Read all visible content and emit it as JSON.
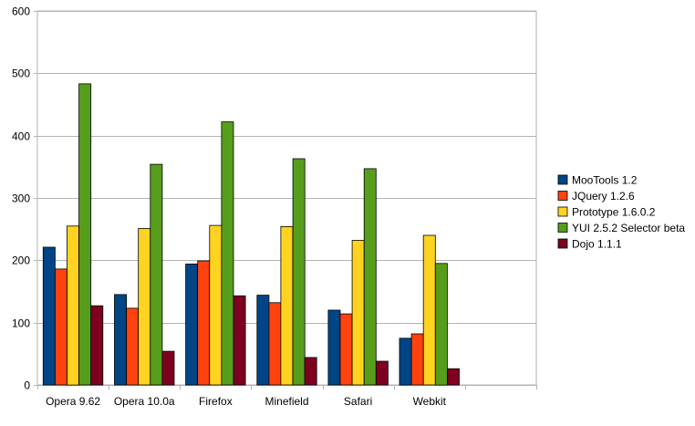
{
  "chart_data": {
    "type": "bar",
    "title": "",
    "xlabel": "",
    "ylabel": "",
    "ylim": [
      0,
      600
    ],
    "yticks": [
      0,
      100,
      200,
      300,
      400,
      500,
      600
    ],
    "grid": true,
    "legend_position": "right",
    "categories": [
      "Opera 9.62",
      "Opera 10.0a",
      "Firefox",
      "Minefield",
      "Safari",
      "Webkit",
      ""
    ],
    "series": [
      {
        "name": "MooTools 1.2",
        "color": "#004586",
        "values": [
          221,
          145,
          194,
          144,
          120,
          75,
          null
        ]
      },
      {
        "name": "JQuery 1.2.6",
        "color": "#ff420e",
        "values": [
          186,
          123,
          199,
          132,
          114,
          82,
          null
        ]
      },
      {
        "name": "Prototype 1.6.0.2",
        "color": "#ffd320",
        "values": [
          255,
          251,
          256,
          254,
          232,
          240,
          null
        ]
      },
      {
        "name": "YUI 2.5.2 Selector beta",
        "color": "#579d1c",
        "values": [
          483,
          354,
          422,
          363,
          347,
          195,
          null
        ]
      },
      {
        "name": "Dojo 1.1.1",
        "color": "#7e0021",
        "values": [
          127,
          54,
          143,
          44,
          38,
          26,
          null
        ]
      }
    ]
  }
}
